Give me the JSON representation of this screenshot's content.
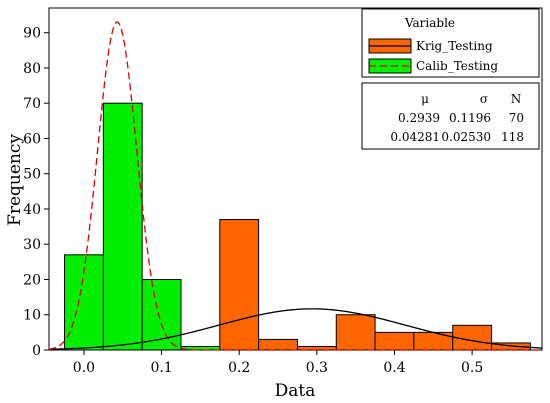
{
  "chart_data": {
    "type": "bar",
    "xlabel": "Data",
    "ylabel": "Frequency",
    "xlim": [
      -0.045,
      0.59
    ],
    "ylim": [
      0,
      97
    ],
    "x_ticks": [
      0.0,
      0.1,
      0.2,
      0.3,
      0.4,
      0.5
    ],
    "x_tick_labels": [
      "0.0",
      "0.1",
      "0.2",
      "0.3",
      "0.4",
      "0.5"
    ],
    "y_ticks": [
      0,
      10,
      20,
      30,
      40,
      50,
      60,
      70,
      80,
      90
    ],
    "y_tick_labels": [
      "0",
      "10",
      "20",
      "30",
      "40",
      "50",
      "60",
      "70",
      "80",
      "90"
    ],
    "bin_width": 0.05,
    "legend": {
      "title": "Variable",
      "placement": "top-right"
    },
    "stats_header": [
      "μ",
      "σ",
      "N"
    ],
    "series": [
      {
        "name": "Krig_Testing",
        "color": "#ff6600",
        "line_color": "#000000",
        "line_style": "solid",
        "bin_starts": [
          0.175,
          0.225,
          0.275,
          0.325,
          0.375,
          0.425,
          0.475,
          0.525
        ],
        "counts": [
          37,
          3,
          1,
          10,
          5,
          5,
          7,
          2
        ],
        "stats": [
          "0.2939",
          "0.1196",
          "70"
        ],
        "mean": 0.2939,
        "std": 0.1196,
        "n": 70
      },
      {
        "name": "Calib_Testing",
        "color": "#00ee00",
        "line_color": "#dd0000",
        "line_style": "dashed",
        "bin_starts": [
          -0.025,
          0.025,
          0.075,
          0.125
        ],
        "counts": [
          27,
          70,
          20,
          1
        ],
        "stats": [
          "0.04281",
          "0.02530",
          "118"
        ],
        "mean": 0.04281,
        "std": 0.0253,
        "n": 118
      }
    ]
  }
}
